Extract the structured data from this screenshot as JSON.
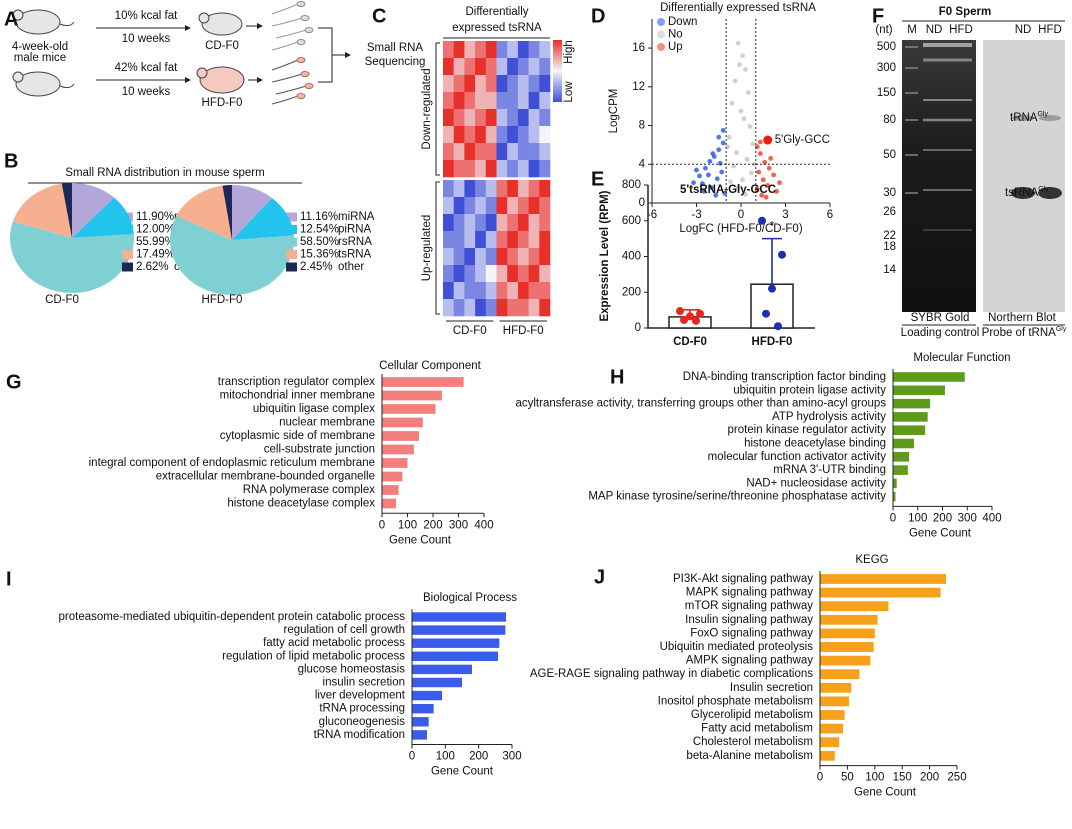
{
  "panel_labels": [
    "A",
    "B",
    "C",
    "D",
    "E",
    "F",
    "G",
    "H",
    "I",
    "J"
  ],
  "schematic": {
    "start_label": [
      "4-week-old",
      "male mice"
    ],
    "arms": [
      {
        "diet": "10% kcal fat",
        "duration": "10 weeks",
        "group": "CD-F0"
      },
      {
        "diet": "42% kcal fat",
        "duration": "10 weeks",
        "group": "HFD-F0"
      }
    ],
    "endpoint": [
      "Small RNA",
      "Sequencing"
    ]
  },
  "gel": {
    "title": "F0 Sperm",
    "unit": "(nt)",
    "lanes_left": [
      "M",
      "ND",
      "HFD"
    ],
    "lanes_right": [
      "ND",
      "HFD"
    ],
    "size_markers": [
      500,
      300,
      150,
      80,
      50,
      30,
      26,
      22,
      18,
      14
    ],
    "band_labels": [
      {
        "text": "tRNA",
        "sup": "Gly"
      },
      {
        "text": "tsRNA",
        "sup": "Gly"
      }
    ],
    "captions_left": [
      "SYBR Gold",
      "Loading control"
    ],
    "captions_right": [
      "Northern Blot",
      {
        "text": "Probe of tRNA",
        "sup": "Gly"
      }
    ]
  },
  "chart_data": [
    {
      "type": "pie",
      "title": "Small RNA distribution in mouse sperm",
      "categories": [
        "miRNA",
        "piRNA",
        "rsRNA",
        "tsRNA",
        "other"
      ],
      "colors": [
        "#b3a6d9",
        "#22c4ee",
        "#7fd0d3",
        "#f7b08f",
        "#1f2757"
      ],
      "series": [
        {
          "name": "CD-F0",
          "values": [
            11.9,
            12.0,
            55.99,
            17.49,
            2.62
          ],
          "value_labels": [
            "11.90%",
            "12.00%",
            "55.99%",
            "17.49%",
            "2.62%"
          ]
        },
        {
          "name": "HFD-F0",
          "values": [
            11.16,
            12.54,
            58.5,
            15.36,
            2.45
          ],
          "value_labels": [
            "11.16%",
            "12.54%",
            "58.50%",
            "15.36%",
            "2.45%"
          ]
        }
      ]
    },
    {
      "type": "heatmap",
      "title_lines": [
        "Differentially",
        "expressed tsRNA"
      ],
      "categories": [
        "CD-F0",
        "HFD-F0"
      ],
      "colorbar_labels": [
        "High",
        "Low"
      ],
      "zlim": [
        -3,
        3
      ],
      "colors": [
        "#3f4fd6",
        "#f4f4fb",
        "#e8302a"
      ],
      "groups": [
        {
          "name": "Down-regulated",
          "rows": [
            [
              2,
              3,
              1,
              2,
              3,
              -2,
              -1,
              -3,
              -2,
              -1
            ],
            [
              3,
              1,
              2,
              3,
              2,
              -1,
              -3,
              -2,
              -1,
              -2
            ],
            [
              1,
              2,
              3,
              1,
              2,
              -3,
              -2,
              -1,
              -2,
              -3
            ],
            [
              2,
              3,
              2,
              1,
              1,
              -2,
              -2,
              -1,
              -3,
              -1
            ],
            [
              3,
              2,
              1,
              2,
              3,
              -1,
              -2,
              -3,
              -1,
              -2
            ],
            [
              1,
              3,
              2,
              3,
              1,
              -2,
              -3,
              -2,
              -1,
              0
            ],
            [
              2,
              1,
              3,
              2,
              2,
              -3,
              -1,
              -2,
              -2,
              -1
            ],
            [
              3,
              2,
              2,
              1,
              3,
              -1,
              -2,
              -1,
              -3,
              -2
            ]
          ]
        },
        {
          "name": "Up-regulated",
          "rows": [
            [
              -2,
              -1,
              -3,
              -2,
              -1,
              2,
              3,
              1,
              2,
              3
            ],
            [
              -1,
              -3,
              -2,
              -1,
              -2,
              3,
              1,
              2,
              3,
              2
            ],
            [
              -3,
              -2,
              -1,
              -2,
              -3,
              1,
              2,
              3,
              1,
              2
            ],
            [
              -2,
              -2,
              -1,
              -3,
              -1,
              2,
              3,
              2,
              1,
              3
            ],
            [
              -1,
              -2,
              -3,
              -1,
              -2,
              3,
              2,
              1,
              2,
              3
            ],
            [
              -2,
              -3,
              -2,
              -1,
              0,
              1,
              3,
              2,
              3,
              1
            ],
            [
              -3,
              -1,
              -2,
              -2,
              -1,
              2,
              1,
              3,
              2,
              2
            ],
            [
              -1,
              -2,
              -1,
              -3,
              -2,
              3,
              2,
              2,
              1,
              3
            ]
          ]
        }
      ]
    },
    {
      "type": "scatter",
      "title": "Differentially expressed tsRNA",
      "xlabel": "LogFC (HFD-F0/CD-F0)",
      "ylabel": "LogCPM",
      "xlim": [
        -6,
        6
      ],
      "xticks": [
        -6,
        -3,
        0,
        3,
        6
      ],
      "ylim": [
        0,
        19
      ],
      "yticks": [
        0,
        4,
        8,
        12,
        16
      ],
      "thresholds": {
        "x": [
          -1,
          1
        ],
        "y": 4
      },
      "series": [
        {
          "name": "Down",
          "color": "#2f5fe6",
          "x": [
            -1.2,
            -1.5,
            -1.8,
            -2.1,
            -2.4,
            -2.8,
            -3.2,
            -1.3,
            -1.6,
            -2.0,
            -2.5,
            -1.1,
            -1.4,
            -1.9,
            -2.2,
            -3.0,
            -1.7,
            -2.6,
            -1.2,
            -1.5
          ],
          "y": [
            6.2,
            5.5,
            4.8,
            4.3,
            3.6,
            2.8,
            2.1,
            3.2,
            2.5,
            1.6,
            1.2,
            1.0,
            4.1,
            5.1,
            2.9,
            3.4,
            0.8,
            2.0,
            7.5,
            6.8
          ]
        },
        {
          "name": "No",
          "color": "#c8c8c8",
          "x": [
            -0.2,
            0.1,
            0.3,
            -0.4,
            0.5,
            -0.6,
            0.0,
            0.2,
            -0.1,
            0.6,
            -0.8,
            0.8,
            -0.3,
            0.4,
            -0.5,
            0.7,
            0.1,
            -0.2,
            0.3,
            -0.7,
            0.9,
            -0.9
          ],
          "y": [
            16.5,
            15.2,
            13.8,
            12.6,
            11.4,
            10.3,
            9.5,
            8.7,
            14.3,
            7.9,
            6.8,
            6.1,
            5.2,
            4.5,
            3.8,
            3.1,
            2.4,
            1.6,
            0.9,
            2.2,
            4.0,
            5.8
          ]
        },
        {
          "name": "Up",
          "color": "#f0452a",
          "x": [
            1.1,
            1.3,
            1.6,
            1.9,
            2.2,
            1.2,
            1.5,
            1.8,
            2.4,
            1.4,
            2.0,
            1.1,
            1.7,
            2.6,
            1.3
          ],
          "y": [
            5.8,
            5.1,
            4.2,
            3.6,
            2.9,
            3.2,
            2.4,
            1.8,
            1.2,
            0.8,
            4.6,
            1.4,
            0.6,
            2.1,
            6.3
          ]
        }
      ],
      "annotations": [
        {
          "text": "5'Gly-GCC",
          "x": 1.8,
          "y": 6.5,
          "color": "#e8200f"
        }
      ]
    },
    {
      "type": "bar",
      "title": "5'tsRNA-Gly-GCC",
      "ylabel": "Expression Level (RPM)",
      "categories": [
        "CD-F0",
        "HFD-F0"
      ],
      "values": [
        62,
        245
      ],
      "errors": [
        40,
        255
      ],
      "points": [
        [
          95,
          80,
          65,
          45,
          40
        ],
        [
          600,
          410,
          220,
          80,
          10
        ]
      ],
      "colors": [
        "#e8251e",
        "#1c2fb0"
      ],
      "ylim": [
        0,
        800
      ],
      "yticks": [
        0,
        200,
        400,
        600,
        800
      ],
      "annotations": [
        {
          "text": "*",
          "x": "HFD-F0"
        }
      ]
    },
    {
      "type": "barh",
      "title": "Cellular Component",
      "xlabel": "Gene Count",
      "color": "#f27f7c",
      "categories": [
        "transcription regulator complex",
        "mitochondrial inner membrane",
        "ubiquitin ligase complex",
        "nuclear membrane",
        "cytoplasmic side of membrane",
        "cell-substrate junction",
        "integral component of endoplasmic reticulum membrane",
        "extracellular membrane-bounded organelle",
        "RNA polymerase complex",
        "histone deacetylase complex"
      ],
      "values": [
        320,
        235,
        210,
        160,
        145,
        125,
        100,
        80,
        65,
        55
      ],
      "xlim": [
        0,
        400
      ],
      "xticks": [
        0,
        100,
        200,
        300,
        400
      ]
    },
    {
      "type": "barh",
      "title": "Molecular Function",
      "xlabel": "Gene Count",
      "color": "#5f9a1c",
      "categories": [
        "DNA-binding transcription factor binding",
        "ubiquitin protein ligase activity",
        "acyltransferase activity, transferring groups other than amino-acyl groups",
        "ATP hydrolysis activity",
        "protein kinase regulator activity",
        "histone deacetylase binding",
        "molecular function activator activity",
        "mRNA 3'-UTR binding",
        "NAD+ nucleosidase activity",
        "MAP kinase tyrosine/serine/threonine phosphatase activity"
      ],
      "values": [
        290,
        210,
        150,
        140,
        130,
        85,
        65,
        60,
        15,
        10
      ],
      "xlim": [
        0,
        400
      ],
      "xticks": [
        0,
        100,
        200,
        300,
        400
      ]
    },
    {
      "type": "barh",
      "title": "Biological Process",
      "xlabel": "Gene Count",
      "color": "#3b5bea",
      "categories": [
        "proteasome-mediated ubiquitin-dependent protein catabolic process",
        "regulation of cell growth",
        "fatty acid metabolic process",
        "regulation of lipid metabolic process",
        "glucose homeostasis",
        "insulin secretion",
        "liver development",
        "tRNA processing",
        "gluconeogenesis",
        "tRNA modification"
      ],
      "values": [
        282,
        280,
        262,
        258,
        180,
        150,
        90,
        65,
        50,
        45
      ],
      "xlim": [
        0,
        300
      ],
      "xticks": [
        0,
        100,
        200,
        300
      ]
    },
    {
      "type": "barh",
      "title": "KEGG",
      "xlabel": "Gene Count",
      "color": "#f6a01b",
      "categories": [
        "PI3K-Akt signaling pathway",
        "MAPK signaling pathway",
        "mTOR signaling pathway",
        "Insulin signaling pathway",
        "FoxO signaling pathway",
        "Ubiquitin mediated proteolysis",
        "AMPK signaling pathway",
        "AGE-RAGE signaling pathway in diabetic complications",
        "Insulin secretion",
        "Inositol phosphate metabolism",
        "Glycerolipid metabolism",
        "Fatty acid metabolism",
        "Cholesterol metabolism",
        "beta-Alanine metabolism"
      ],
      "values": [
        230,
        220,
        125,
        105,
        100,
        98,
        92,
        72,
        57,
        53,
        45,
        42,
        35,
        27
      ],
      "xlim": [
        0,
        250
      ],
      "xticks": [
        0,
        50,
        100,
        150,
        200,
        250
      ]
    }
  ]
}
